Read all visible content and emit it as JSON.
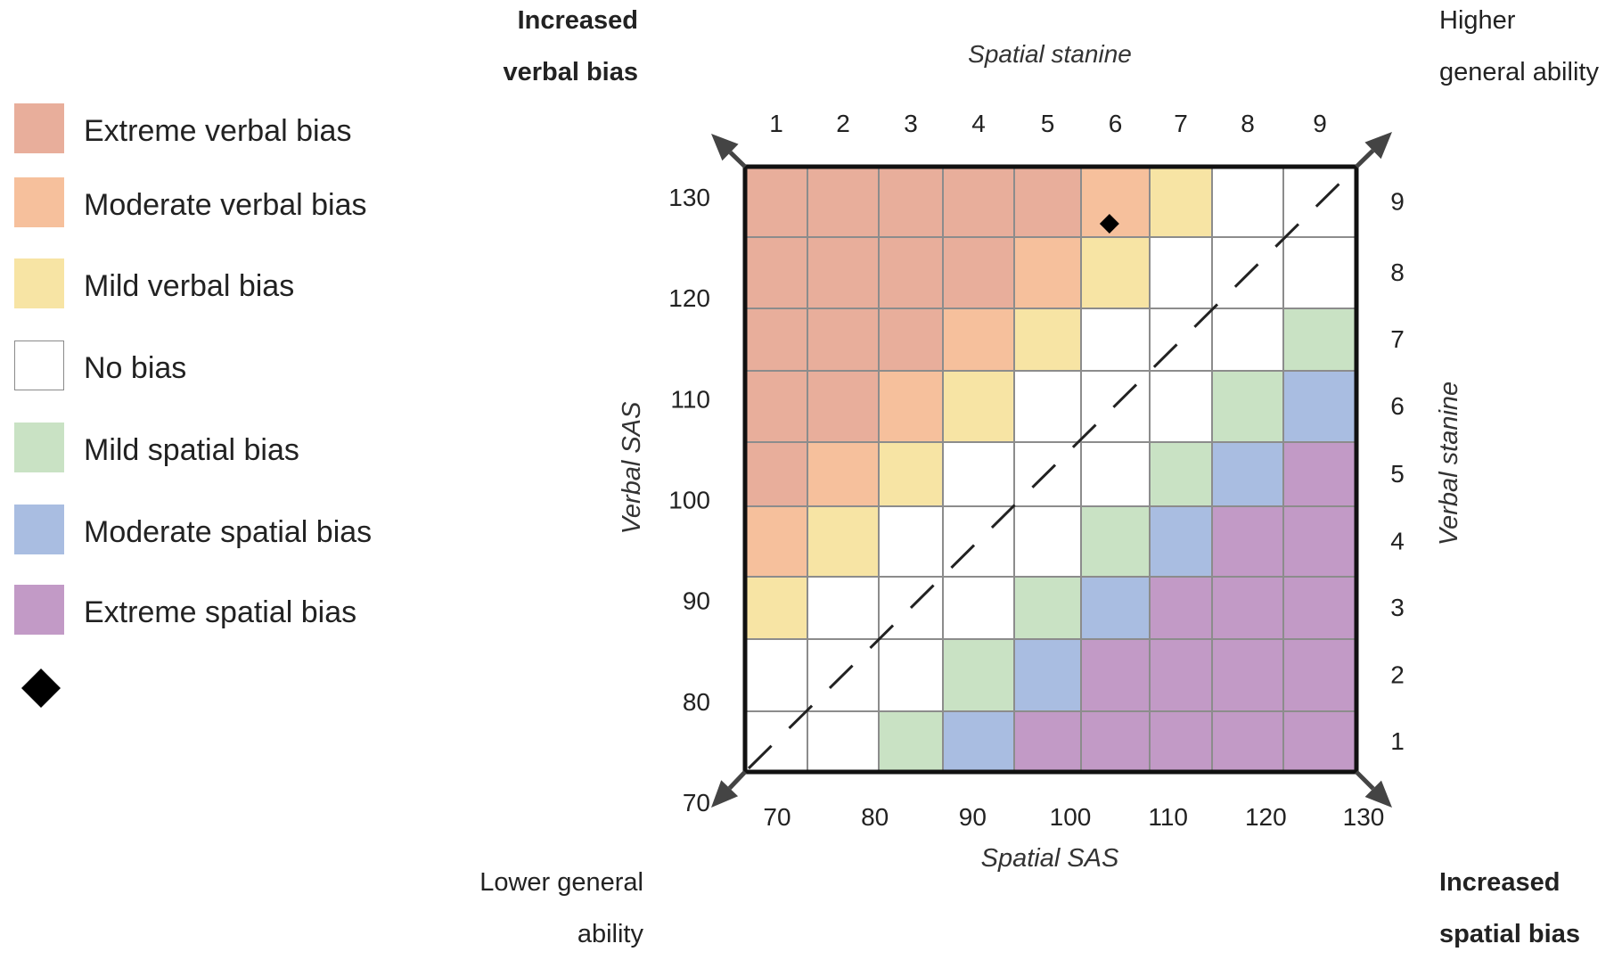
{
  "chart_data": {
    "type": "heatmap",
    "title": "",
    "x_axis": {
      "label_bottom": "Spatial SAS",
      "ticks_bottom": [
        "70",
        "80",
        "90",
        "100",
        "110",
        "120",
        "130"
      ],
      "label_top": "Spatial stanine",
      "ticks_top": [
        "1",
        "2",
        "3",
        "4",
        "5",
        "6",
        "7",
        "8",
        "9"
      ]
    },
    "y_axis": {
      "label_left": "Verbal SAS",
      "ticks_left": [
        "130",
        "120",
        "110",
        "100",
        "90",
        "80",
        "70"
      ],
      "label_right": "Verbal stanine",
      "ticks_right": [
        "9",
        "8",
        "7",
        "6",
        "5",
        "4",
        "3",
        "2",
        "1"
      ]
    },
    "categories": {
      "EV": {
        "label": "Extreme verbal bias",
        "color": "#e8ae9b"
      },
      "MV": {
        "label": "Moderate verbal bias",
        "color": "#f6c09c"
      },
      "LV": {
        "label": "Mild verbal bias",
        "color": "#f7e4a4"
      },
      "N": {
        "label": "No bias",
        "color": "#ffffff"
      },
      "LS": {
        "label": "Mild spatial bias",
        "color": "#c9e2c4"
      },
      "MS": {
        "label": "Moderate spatial bias",
        "color": "#a9bde1"
      },
      "ES": {
        "label": "Extreme spatial bias",
        "color": "#c29ac6"
      }
    },
    "legend_order": [
      "EV",
      "MV",
      "LV",
      "N",
      "LS",
      "MS",
      "ES"
    ],
    "grid_rows_verbal_stanine_9_to_1": [
      [
        "EV",
        "EV",
        "EV",
        "EV",
        "EV",
        "MV",
        "LV",
        "N",
        "N"
      ],
      [
        "EV",
        "EV",
        "EV",
        "EV",
        "MV",
        "LV",
        "N",
        "N",
        "N"
      ],
      [
        "EV",
        "EV",
        "EV",
        "MV",
        "LV",
        "N",
        "N",
        "N",
        "LS"
      ],
      [
        "EV",
        "EV",
        "MV",
        "LV",
        "N",
        "N",
        "N",
        "LS",
        "MS"
      ],
      [
        "EV",
        "MV",
        "LV",
        "N",
        "N",
        "N",
        "LS",
        "MS",
        "ES"
      ],
      [
        "MV",
        "LV",
        "N",
        "N",
        "N",
        "LS",
        "MS",
        "ES",
        "ES"
      ],
      [
        "LV",
        "N",
        "N",
        "N",
        "LS",
        "MS",
        "ES",
        "ES",
        "ES"
      ],
      [
        "N",
        "N",
        "N",
        "LS",
        "MS",
        "ES",
        "ES",
        "ES",
        "ES"
      ],
      [
        "N",
        "N",
        "LS",
        "MS",
        "ES",
        "ES",
        "ES",
        "ES",
        "ES"
      ]
    ],
    "diagonal_line": "dashed, lower-left to upper-right",
    "marker": {
      "shape": "diamond",
      "spatial_sas": 104,
      "verbal_sas": 127
    },
    "corner_labels": {
      "top_left": [
        "Increased",
        "verbal bias"
      ],
      "top_right": [
        "Higher",
        "general ability"
      ],
      "bottom_left": [
        "Lower general",
        "ability"
      ],
      "bottom_right": [
        "Increased",
        "spatial bias"
      ]
    }
  }
}
